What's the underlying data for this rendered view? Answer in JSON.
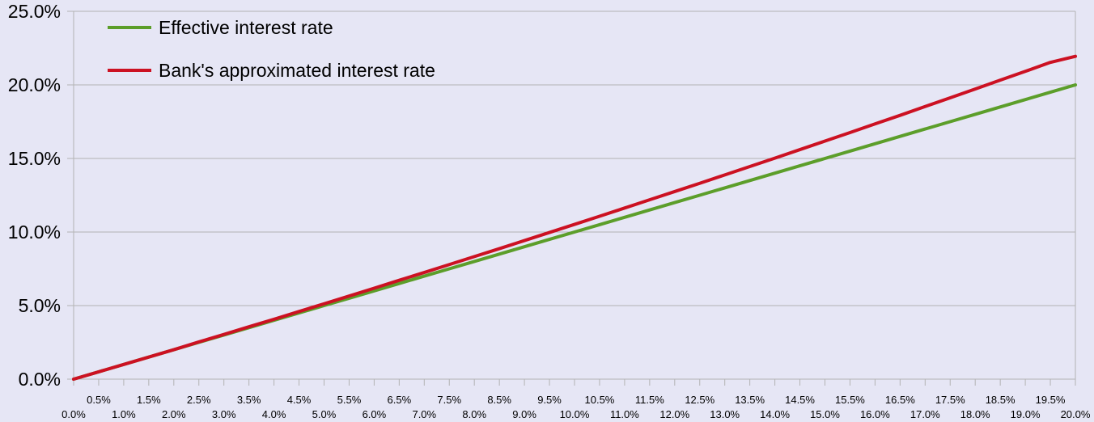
{
  "chart_data": {
    "type": "line",
    "title": "",
    "xlabel": "",
    "ylabel": "",
    "x": [
      0.0,
      0.5,
      1.0,
      1.5,
      2.0,
      2.5,
      3.0,
      3.5,
      4.0,
      4.5,
      5.0,
      5.5,
      6.0,
      6.5,
      7.0,
      7.5,
      8.0,
      8.5,
      9.0,
      9.5,
      10.0,
      10.5,
      11.0,
      11.5,
      12.0,
      12.5,
      13.0,
      13.5,
      14.0,
      14.5,
      15.0,
      15.5,
      16.0,
      16.5,
      17.0,
      17.5,
      18.0,
      18.5,
      19.0,
      19.5,
      20.0
    ],
    "x_tick_labels": [
      "0.0%",
      "0.5%",
      "1.0%",
      "1.5%",
      "2.0%",
      "2.5%",
      "3.0%",
      "3.5%",
      "4.0%",
      "4.5%",
      "5.0%",
      "5.5%",
      "6.0%",
      "6.5%",
      "7.0%",
      "7.5%",
      "8.0%",
      "8.5%",
      "9.0%",
      "9.5%",
      "10.0%",
      "10.5%",
      "11.0%",
      "11.5%",
      "12.0%",
      "12.5%",
      "13.0%",
      "13.5%",
      "14.0%",
      "14.5%",
      "15.0%",
      "15.5%",
      "16.0%",
      "16.5%",
      "17.0%",
      "17.5%",
      "18.0%",
      "18.5%",
      "19.0%",
      "19.5%",
      "20.0%"
    ],
    "y_ticks": [
      0,
      5,
      10,
      15,
      20,
      25
    ],
    "y_tick_labels": [
      "0.0%",
      "5.0%",
      "10.0%",
      "15.0%",
      "20.0%",
      "25.0%"
    ],
    "ylim": [
      0,
      25
    ],
    "grid": "horizontal",
    "legend_position": "top-left",
    "series": [
      {
        "name": "Effective interest rate",
        "color": "#5c9e2a",
        "values": [
          0.0,
          0.5,
          1.0,
          1.5,
          2.0,
          2.5,
          3.0,
          3.5,
          4.0,
          4.5,
          5.0,
          5.5,
          6.0,
          6.5,
          7.0,
          7.5,
          8.0,
          8.5,
          9.0,
          9.5,
          10.0,
          10.5,
          11.0,
          11.5,
          12.0,
          12.5,
          13.0,
          13.5,
          14.0,
          14.5,
          15.0,
          15.5,
          16.0,
          16.5,
          17.0,
          17.5,
          18.0,
          18.5,
          19.0,
          19.5,
          20.0
        ]
      },
      {
        "name": "Bank's approximated interest rate",
        "color": "#cc1122",
        "values": [
          0.0,
          0.5,
          1.0,
          1.5,
          2.0,
          2.53,
          3.04,
          3.56,
          4.07,
          4.6,
          5.12,
          5.65,
          6.18,
          6.72,
          7.25,
          7.79,
          8.33,
          8.87,
          9.42,
          9.97,
          10.52,
          11.07,
          11.63,
          12.19,
          12.75,
          13.31,
          13.88,
          14.45,
          15.02,
          15.6,
          16.18,
          16.76,
          17.35,
          17.93,
          18.53,
          19.12,
          19.72,
          20.32,
          20.92,
          21.53,
          21.94
        ]
      }
    ]
  }
}
